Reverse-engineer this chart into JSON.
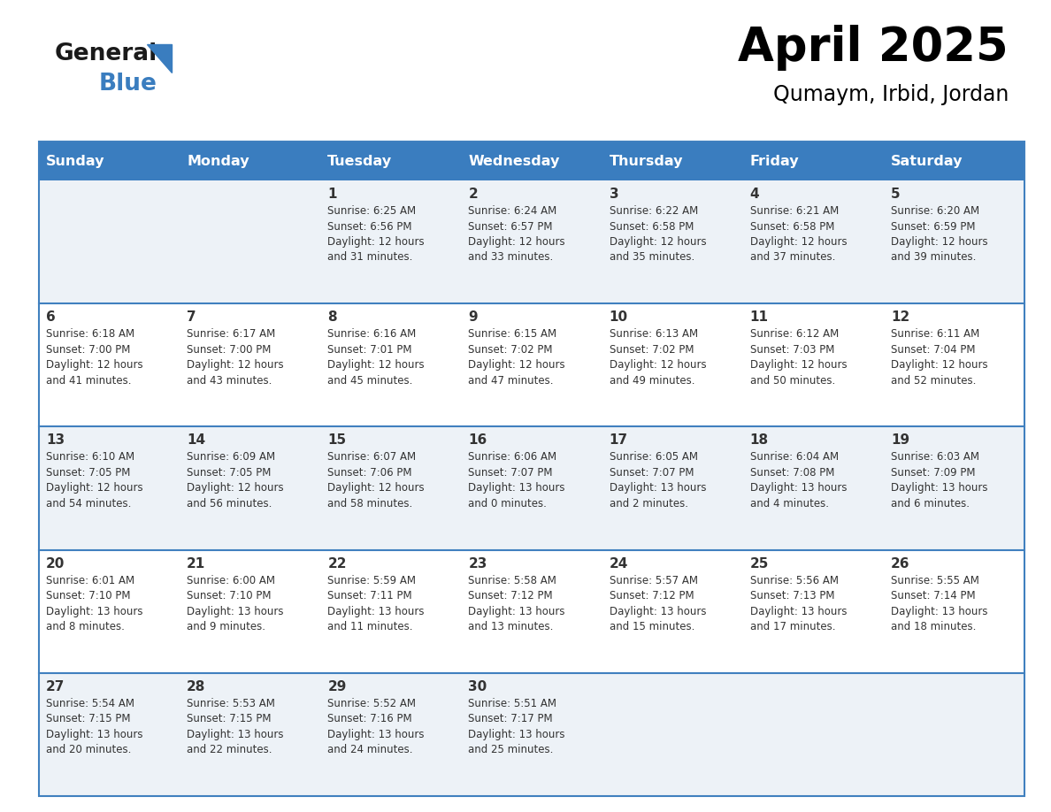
{
  "title": "April 2025",
  "subtitle": "Qumaym, Irbid, Jordan",
  "header_color": "#3a7dbf",
  "header_text_color": "#ffffff",
  "cell_bg_light": "#edf2f7",
  "cell_bg_white": "#ffffff",
  "border_color": "#4080bf",
  "text_color": "#333333",
  "days_of_week": [
    "Sunday",
    "Monday",
    "Tuesday",
    "Wednesday",
    "Thursday",
    "Friday",
    "Saturday"
  ],
  "calendar_data": [
    [
      "",
      "",
      "1\nSunrise: 6:25 AM\nSunset: 6:56 PM\nDaylight: 12 hours\nand 31 minutes.",
      "2\nSunrise: 6:24 AM\nSunset: 6:57 PM\nDaylight: 12 hours\nand 33 minutes.",
      "3\nSunrise: 6:22 AM\nSunset: 6:58 PM\nDaylight: 12 hours\nand 35 minutes.",
      "4\nSunrise: 6:21 AM\nSunset: 6:58 PM\nDaylight: 12 hours\nand 37 minutes.",
      "5\nSunrise: 6:20 AM\nSunset: 6:59 PM\nDaylight: 12 hours\nand 39 minutes."
    ],
    [
      "6\nSunrise: 6:18 AM\nSunset: 7:00 PM\nDaylight: 12 hours\nand 41 minutes.",
      "7\nSunrise: 6:17 AM\nSunset: 7:00 PM\nDaylight: 12 hours\nand 43 minutes.",
      "8\nSunrise: 6:16 AM\nSunset: 7:01 PM\nDaylight: 12 hours\nand 45 minutes.",
      "9\nSunrise: 6:15 AM\nSunset: 7:02 PM\nDaylight: 12 hours\nand 47 minutes.",
      "10\nSunrise: 6:13 AM\nSunset: 7:02 PM\nDaylight: 12 hours\nand 49 minutes.",
      "11\nSunrise: 6:12 AM\nSunset: 7:03 PM\nDaylight: 12 hours\nand 50 minutes.",
      "12\nSunrise: 6:11 AM\nSunset: 7:04 PM\nDaylight: 12 hours\nand 52 minutes."
    ],
    [
      "13\nSunrise: 6:10 AM\nSunset: 7:05 PM\nDaylight: 12 hours\nand 54 minutes.",
      "14\nSunrise: 6:09 AM\nSunset: 7:05 PM\nDaylight: 12 hours\nand 56 minutes.",
      "15\nSunrise: 6:07 AM\nSunset: 7:06 PM\nDaylight: 12 hours\nand 58 minutes.",
      "16\nSunrise: 6:06 AM\nSunset: 7:07 PM\nDaylight: 13 hours\nand 0 minutes.",
      "17\nSunrise: 6:05 AM\nSunset: 7:07 PM\nDaylight: 13 hours\nand 2 minutes.",
      "18\nSunrise: 6:04 AM\nSunset: 7:08 PM\nDaylight: 13 hours\nand 4 minutes.",
      "19\nSunrise: 6:03 AM\nSunset: 7:09 PM\nDaylight: 13 hours\nand 6 minutes."
    ],
    [
      "20\nSunrise: 6:01 AM\nSunset: 7:10 PM\nDaylight: 13 hours\nand 8 minutes.",
      "21\nSunrise: 6:00 AM\nSunset: 7:10 PM\nDaylight: 13 hours\nand 9 minutes.",
      "22\nSunrise: 5:59 AM\nSunset: 7:11 PM\nDaylight: 13 hours\nand 11 minutes.",
      "23\nSunrise: 5:58 AM\nSunset: 7:12 PM\nDaylight: 13 hours\nand 13 minutes.",
      "24\nSunrise: 5:57 AM\nSunset: 7:12 PM\nDaylight: 13 hours\nand 15 minutes.",
      "25\nSunrise: 5:56 AM\nSunset: 7:13 PM\nDaylight: 13 hours\nand 17 minutes.",
      "26\nSunrise: 5:55 AM\nSunset: 7:14 PM\nDaylight: 13 hours\nand 18 minutes."
    ],
    [
      "27\nSunrise: 5:54 AM\nSunset: 7:15 PM\nDaylight: 13 hours\nand 20 minutes.",
      "28\nSunrise: 5:53 AM\nSunset: 7:15 PM\nDaylight: 13 hours\nand 22 minutes.",
      "29\nSunrise: 5:52 AM\nSunset: 7:16 PM\nDaylight: 13 hours\nand 24 minutes.",
      "30\nSunrise: 5:51 AM\nSunset: 7:17 PM\nDaylight: 13 hours\nand 25 minutes.",
      "",
      "",
      ""
    ]
  ],
  "logo_text_general": "General",
  "logo_text_blue": "Blue",
  "logo_color_general": "#1a1a1a",
  "logo_color_blue": "#3a7dbf",
  "logo_triangle_color": "#3a7dbf",
  "title_fontsize": 38,
  "subtitle_fontsize": 17,
  "header_fontsize": 11.5,
  "day_num_fontsize": 11,
  "cell_text_fontsize": 8.5
}
